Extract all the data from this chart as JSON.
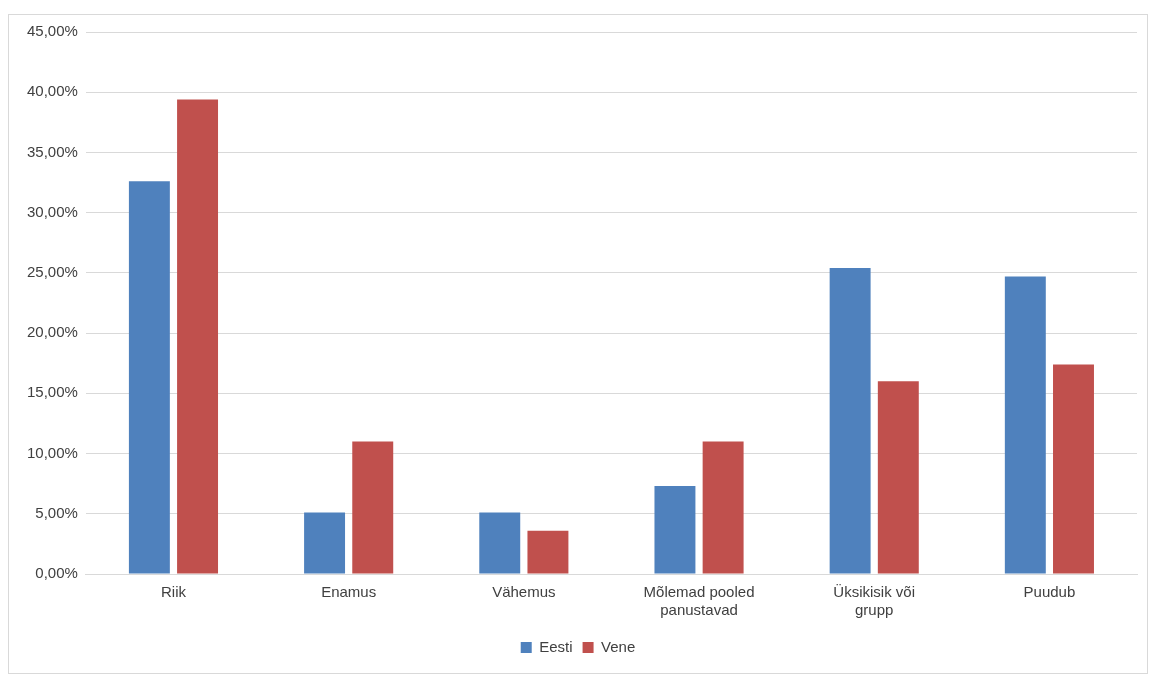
{
  "chart_data": {
    "type": "bar",
    "categories": [
      "Riik",
      "Enamus",
      "Vähemus",
      "Mõlemad pooled panustavad",
      "Üksikisik või grupp",
      "Puudub"
    ],
    "series": [
      {
        "name": "Eesti",
        "color": "#4f81bd",
        "values": [
          32.6,
          5.1,
          5.1,
          7.3,
          25.4,
          24.7
        ]
      },
      {
        "name": "Vene",
        "color": "#c0504d",
        "values": [
          39.4,
          11.0,
          3.6,
          11.0,
          16.0,
          17.4
        ]
      }
    ],
    "ylim": [
      0,
      45
    ],
    "yticks": [
      {
        "value": 0,
        "label": "0,00%"
      },
      {
        "value": 5,
        "label": "5,00%"
      },
      {
        "value": 10,
        "label": "10,00%"
      },
      {
        "value": 15,
        "label": "15,00%"
      },
      {
        "value": 20,
        "label": "20,00%"
      },
      {
        "value": 25,
        "label": "25,00%"
      },
      {
        "value": 30,
        "label": "30,00%"
      },
      {
        "value": 35,
        "label": "35,00%"
      },
      {
        "value": 40,
        "label": "40,00%"
      },
      {
        "value": 45,
        "label": "45,00%"
      }
    ],
    "grid": "y",
    "legend": "bottom"
  }
}
